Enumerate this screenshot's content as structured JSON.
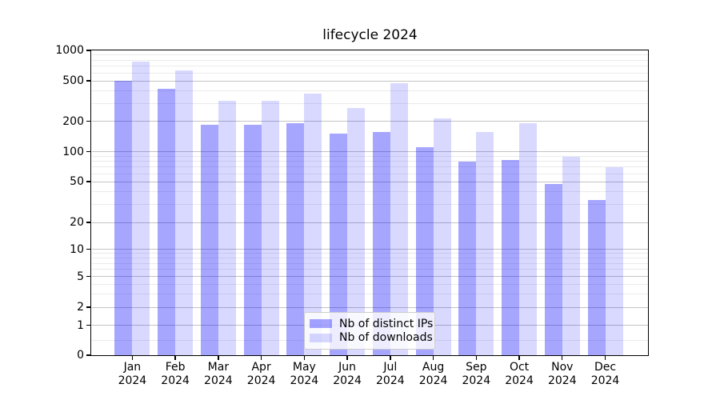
{
  "chart_data": {
    "type": "bar",
    "title": "lifecycle 2024",
    "xlabel": "",
    "ylabel": "",
    "yscale": "symlog",
    "ylim": [
      0,
      1000
    ],
    "grid": "both",
    "legend_position": "bottom-center-inside",
    "categories": [
      "Jan 2024",
      "Feb 2024",
      "Mar 2024",
      "Apr 2024",
      "May 2024",
      "Jun 2024",
      "Jul 2024",
      "Aug 2024",
      "Sep 2024",
      "Oct 2024",
      "Nov 2024",
      "Dec 2024"
    ],
    "series": [
      {
        "name": "Nb of distinct IPs",
        "color": "rgba(0,0,255,0.35)",
        "values": [
          500,
          415,
          185,
          184,
          192,
          150,
          156,
          110,
          80,
          82,
          47,
          33
        ]
      },
      {
        "name": "Nb of downloads",
        "color": "rgba(0,0,255,0.15)",
        "values": [
          775,
          635,
          318,
          320,
          376,
          272,
          472,
          213,
          157,
          193,
          88,
          70
        ]
      }
    ],
    "yticks": [
      0,
      1,
      2,
      5,
      10,
      20,
      50,
      100,
      200,
      500,
      1000
    ],
    "yticks_minor": [
      0.5,
      3,
      4,
      6,
      7,
      8,
      9,
      30,
      40,
      60,
      70,
      80,
      90,
      300,
      400,
      600,
      700,
      800,
      900
    ]
  }
}
